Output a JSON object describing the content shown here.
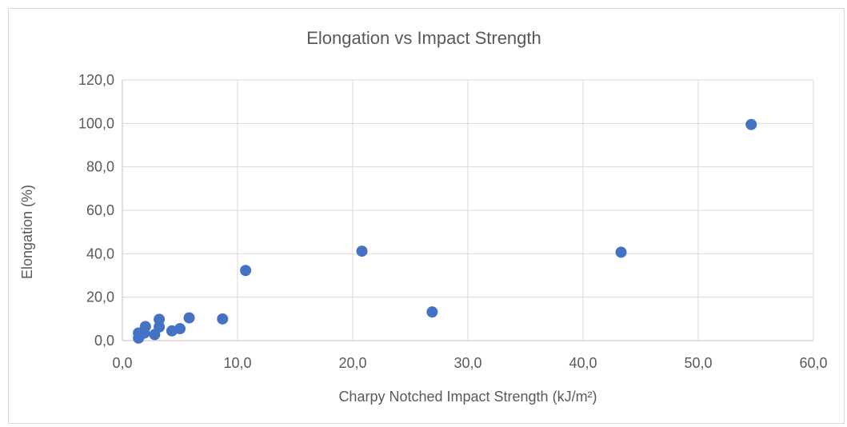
{
  "chart_data": {
    "type": "scatter",
    "title": "Elongation vs Impact Strength",
    "xlabel": "Charpy Notched Impact Strength (kJ/m²)",
    "ylabel": "Elongation (%)",
    "xlim": [
      0,
      60
    ],
    "ylim": [
      0,
      120
    ],
    "x_ticks": [
      "0,0",
      "10,0",
      "20,0",
      "30,0",
      "40,0",
      "50,0",
      "60,0"
    ],
    "y_ticks": [
      "0,0",
      "20,0",
      "40,0",
      "60,0",
      "80,0",
      "100,0",
      "120,0"
    ],
    "grid": true,
    "legend": "none",
    "marker_color": "#4472c4",
    "points": [
      {
        "x": 1.4,
        "y": 1.2
      },
      {
        "x": 1.5,
        "y": 2.2
      },
      {
        "x": 1.4,
        "y": 3.5
      },
      {
        "x": 1.9,
        "y": 3.5
      },
      {
        "x": 2.0,
        "y": 6.5
      },
      {
        "x": 2.8,
        "y": 2.8
      },
      {
        "x": 3.2,
        "y": 6.3
      },
      {
        "x": 3.2,
        "y": 9.8
      },
      {
        "x": 4.3,
        "y": 4.5
      },
      {
        "x": 5.0,
        "y": 5.5
      },
      {
        "x": 5.8,
        "y": 10.5
      },
      {
        "x": 8.7,
        "y": 10.0
      },
      {
        "x": 10.7,
        "y": 32.3
      },
      {
        "x": 20.8,
        "y": 41.2
      },
      {
        "x": 26.9,
        "y": 13.2
      },
      {
        "x": 43.3,
        "y": 40.7
      },
      {
        "x": 54.6,
        "y": 99.5
      }
    ]
  }
}
